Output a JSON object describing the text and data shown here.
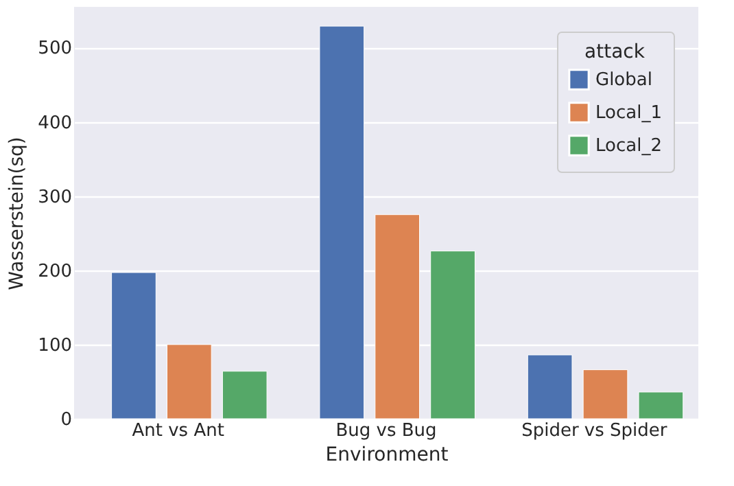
{
  "chart_data": {
    "type": "bar",
    "xlabel": "Environment",
    "ylabel": "Wasserstein(sq)",
    "legend_title": "attack",
    "categories": [
      "Ant vs Ant",
      "Bug vs Bug",
      "Spider vs Spider"
    ],
    "series": [
      {
        "name": "Global",
        "color": "#4c72b0",
        "values": [
          197,
          529,
          86
        ]
      },
      {
        "name": "Local_1",
        "color": "#dd8452",
        "values": [
          100,
          275,
          66
        ]
      },
      {
        "name": "Local_2",
        "color": "#55a868",
        "values": [
          64,
          226,
          36
        ]
      }
    ],
    "ylim": [
      0,
      555
    ],
    "yticks": [
      0,
      100,
      200,
      300,
      400,
      500
    ],
    "grid": "y",
    "legend": "top right"
  }
}
